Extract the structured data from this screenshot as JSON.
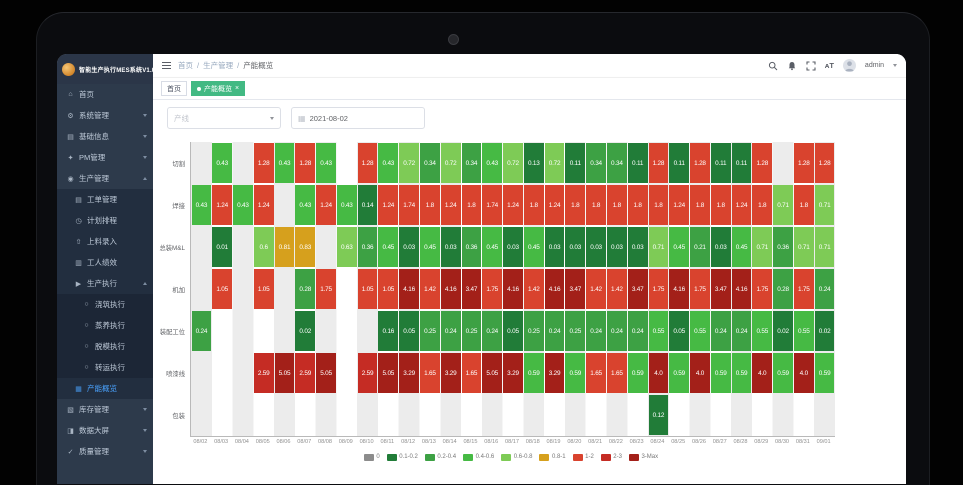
{
  "colors": {
    "sidebar_bg": "#2d3a4b",
    "sidebar_sub_bg": "#222e3f",
    "sidebar_subsub_bg": "#1c2636",
    "active_menu_text": "#4aa3ff",
    "active_tab_bg": "#42b983"
  },
  "sidebar": {
    "logo_text": "智能生产执行MES系统V1.0",
    "items": [
      {
        "label": "首页",
        "icon": "home-icon",
        "glyph": "⌂",
        "level": 1,
        "chevron": false
      },
      {
        "label": "系统管理",
        "icon": "gear-icon",
        "glyph": "⚙",
        "level": 1,
        "chevron": true
      },
      {
        "label": "基础信息",
        "icon": "info-icon",
        "glyph": "▤",
        "level": 1,
        "chevron": true
      },
      {
        "label": "PM管理",
        "icon": "pm-icon",
        "glyph": "✦",
        "level": 1,
        "chevron": true
      },
      {
        "label": "生产管理",
        "icon": "production-icon",
        "glyph": "◉",
        "level": 1,
        "chevron": true,
        "open": true
      },
      {
        "label": "工单管理",
        "icon": "workorder-icon",
        "glyph": "▤",
        "level": 2
      },
      {
        "label": "计划排程",
        "icon": "schedule-icon",
        "glyph": "◷",
        "level": 2
      },
      {
        "label": "上料录入",
        "icon": "material-icon",
        "glyph": "⇧",
        "level": 2
      },
      {
        "label": "工人绩效",
        "icon": "worker-icon",
        "glyph": "▥",
        "level": 2
      },
      {
        "label": "生产执行",
        "icon": "execute-icon",
        "glyph": "▶",
        "level": 2,
        "chevron": true,
        "open": true
      },
      {
        "label": "浇筑执行",
        "icon": "pour-icon",
        "glyph": "○",
        "level": 3
      },
      {
        "label": "蒸养执行",
        "icon": "cure-icon",
        "glyph": "○",
        "level": 3
      },
      {
        "label": "脱模执行",
        "icon": "demold-icon",
        "glyph": "○",
        "level": 3
      },
      {
        "label": "转运执行",
        "icon": "transfer-icon",
        "glyph": "○",
        "level": 3
      },
      {
        "label": "产能概览",
        "icon": "capacity-icon",
        "glyph": "▦",
        "level": 2,
        "active": true
      },
      {
        "label": "库存管理",
        "icon": "inventory-icon",
        "glyph": "▧",
        "level": 1,
        "chevron": true
      },
      {
        "label": "数据大屏",
        "icon": "dashboard-icon",
        "glyph": "◨",
        "level": 1,
        "chevron": true
      },
      {
        "label": "质量管理",
        "icon": "quality-icon",
        "glyph": "✓",
        "level": 1,
        "chevron": true
      }
    ]
  },
  "header": {
    "breadcrumbs": [
      "首页",
      "生产管理",
      "产能概览"
    ],
    "separator": "/",
    "user": "admin"
  },
  "tabs": [
    {
      "label": "首页",
      "active": false
    },
    {
      "label": "产能概览",
      "active": true,
      "close": "×"
    }
  ],
  "filters": {
    "line_placeholder": "产线",
    "date_value": "2021-08-02"
  },
  "chart_data": {
    "type": "heatmap",
    "title": "",
    "xlabel": "",
    "ylabel": "",
    "grid": false,
    "legend_position": "bottom",
    "x_labels": [
      "08/02",
      "08/03",
      "08/04",
      "08/05",
      "08/06",
      "08/07",
      "08/08",
      "08/09",
      "08/10",
      "08/11",
      "08/12",
      "08/13",
      "08/14",
      "08/15",
      "08/16",
      "08/17",
      "08/18",
      "08/19",
      "08/20",
      "08/21",
      "08/22",
      "08/23",
      "08/24",
      "08/25",
      "08/26",
      "08/27",
      "08/28",
      "08/29",
      "08/30",
      "08/31",
      "09/01"
    ],
    "rows": [
      {
        "name": "切割",
        "values": [
          null,
          0.43,
          null,
          1.28,
          0.43,
          1.28,
          0.43,
          null,
          1.28,
          0.43,
          0.72,
          0.34,
          0.72,
          0.34,
          0.43,
          0.72,
          0.13,
          0.72,
          0.11,
          0.34,
          0.34,
          0.11,
          1.28,
          0.11,
          1.28,
          0.11,
          0.11,
          1.28,
          null,
          1.28,
          1.28
        ]
      },
      {
        "name": "焊接",
        "values": [
          0.43,
          1.24,
          0.43,
          1.24,
          null,
          0.43,
          1.24,
          0.43,
          0.14,
          1.24,
          1.74,
          1.8,
          1.24,
          1.8,
          1.74,
          1.24,
          1.8,
          1.24,
          1.8,
          1.8,
          1.8,
          1.8,
          1.8,
          1.24,
          1.8,
          1.8,
          1.24,
          1.8,
          0.71,
          1.8,
          0.71
        ]
      },
      {
        "name": "总装M&L",
        "values": [
          null,
          0.01,
          null,
          0.6,
          0.81,
          0.83,
          null,
          0.63,
          0.36,
          0.45,
          0.03,
          0.45,
          0.03,
          0.36,
          0.45,
          0.03,
          0.45,
          0.03,
          0.03,
          0.03,
          0.03,
          0.03,
          0.71,
          0.45,
          0.21,
          0.03,
          0.45,
          0.71,
          0.36,
          0.71,
          0.71
        ]
      },
      {
        "name": "机加",
        "values": [
          null,
          1.05,
          null,
          1.05,
          null,
          0.28,
          1.75,
          null,
          1.05,
          1.05,
          4.16,
          1.42,
          4.16,
          3.47,
          1.75,
          4.16,
          1.42,
          4.16,
          3.47,
          1.42,
          1.42,
          3.47,
          1.75,
          4.16,
          1.75,
          3.47,
          4.16,
          1.75,
          0.28,
          1.75,
          0.24
        ]
      },
      {
        "name": "装配工位",
        "values": [
          0.24,
          null,
          null,
          null,
          null,
          0.02,
          null,
          null,
          null,
          0.16,
          0.05,
          0.25,
          0.24,
          0.25,
          0.24,
          0.05,
          0.25,
          0.24,
          0.25,
          0.24,
          0.24,
          0.24,
          0.55,
          0.05,
          0.55,
          0.24,
          0.24,
          0.55,
          0.02,
          0.55,
          0.02
        ]
      },
      {
        "name": "喷漆线",
        "values": [
          null,
          null,
          null,
          2.59,
          5.05,
          2.59,
          5.05,
          null,
          2.59,
          5.05,
          3.29,
          1.65,
          3.29,
          1.65,
          5.05,
          3.29,
          0.59,
          3.29,
          0.59,
          1.65,
          1.65,
          0.59,
          4.0,
          0.59,
          4.0,
          0.59,
          0.59,
          4.0,
          0.59,
          4.0,
          0.59
        ]
      },
      {
        "name": "包装",
        "values": [
          null,
          null,
          null,
          null,
          null,
          null,
          null,
          null,
          null,
          null,
          null,
          null,
          null,
          null,
          null,
          null,
          null,
          null,
          null,
          null,
          null,
          null,
          0.12,
          null,
          null,
          null,
          null,
          null,
          null,
          null,
          null
        ]
      }
    ],
    "legend": [
      {
        "label": "0",
        "color": "#8c8c8c"
      },
      {
        "label": "0.1-0.2",
        "color": "#217c38"
      },
      {
        "label": "0.2-0.4",
        "color": "#3da144"
      },
      {
        "label": "0.4-0.6",
        "color": "#46ba44"
      },
      {
        "label": "0.6-0.8",
        "color": "#7ecb56"
      },
      {
        "label": "0.8-1",
        "color": "#d6a01d"
      },
      {
        "label": "1-2",
        "color": "#d9432e"
      },
      {
        "label": "2-3",
        "color": "#c52c24"
      },
      {
        "label": "3-Max",
        "color": "#a32019"
      }
    ]
  }
}
